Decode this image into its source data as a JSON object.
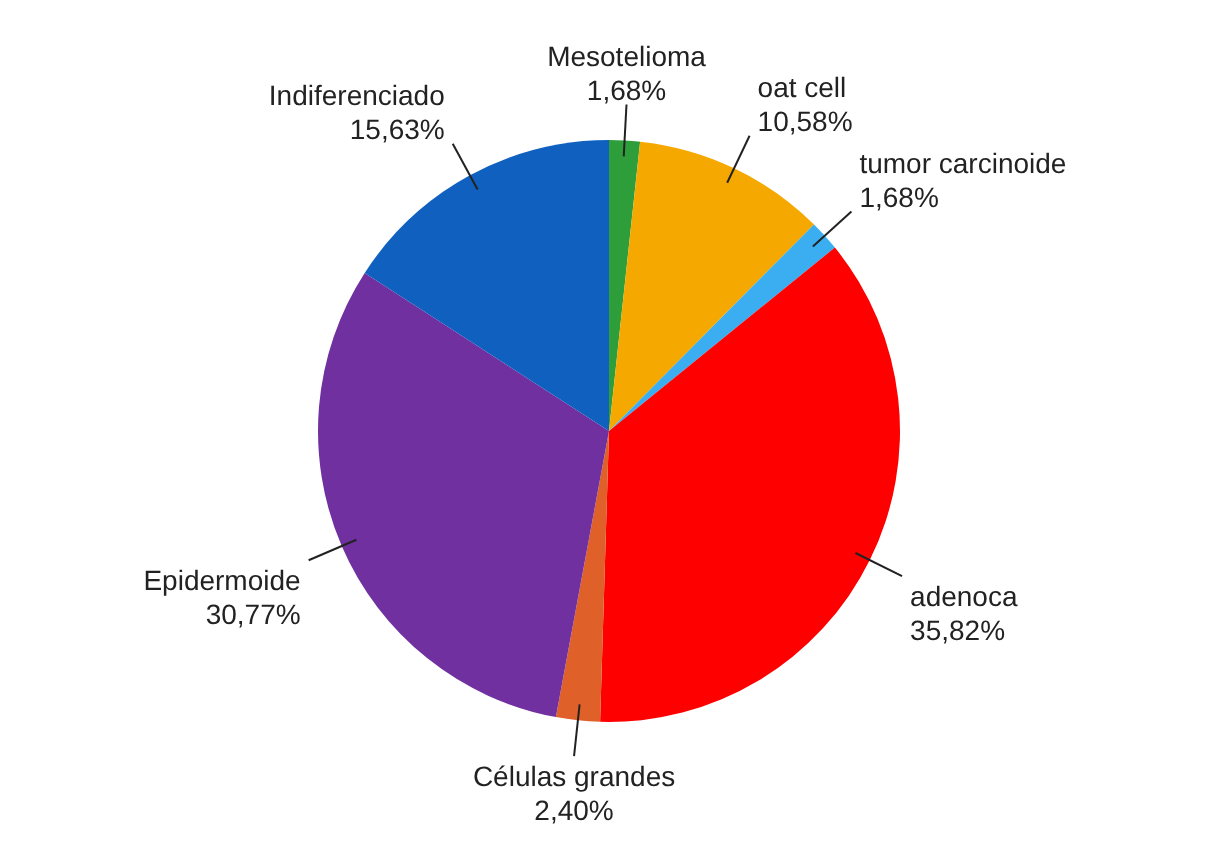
{
  "chart_data": {
    "type": "pie",
    "categories": [
      "Mesotelioma",
      "oat cell",
      "tumor carcinoide",
      "adenoca",
      "Células grandes",
      "Epidermoide",
      "Indiferenciado"
    ],
    "values": [
      1.68,
      10.58,
      1.68,
      35.82,
      2.4,
      30.77,
      15.63
    ],
    "value_labels": [
      "1,68%",
      "10,58%",
      "1,68%",
      "35,82%",
      "2,40%",
      "30,77%",
      "15,63%"
    ],
    "colors": [
      "#2e9e3a",
      "#f5a800",
      "#3aaef0",
      "#ff0000",
      "#e0602a",
      "#7030a0",
      "#1060c0"
    ],
    "legend": false
  }
}
